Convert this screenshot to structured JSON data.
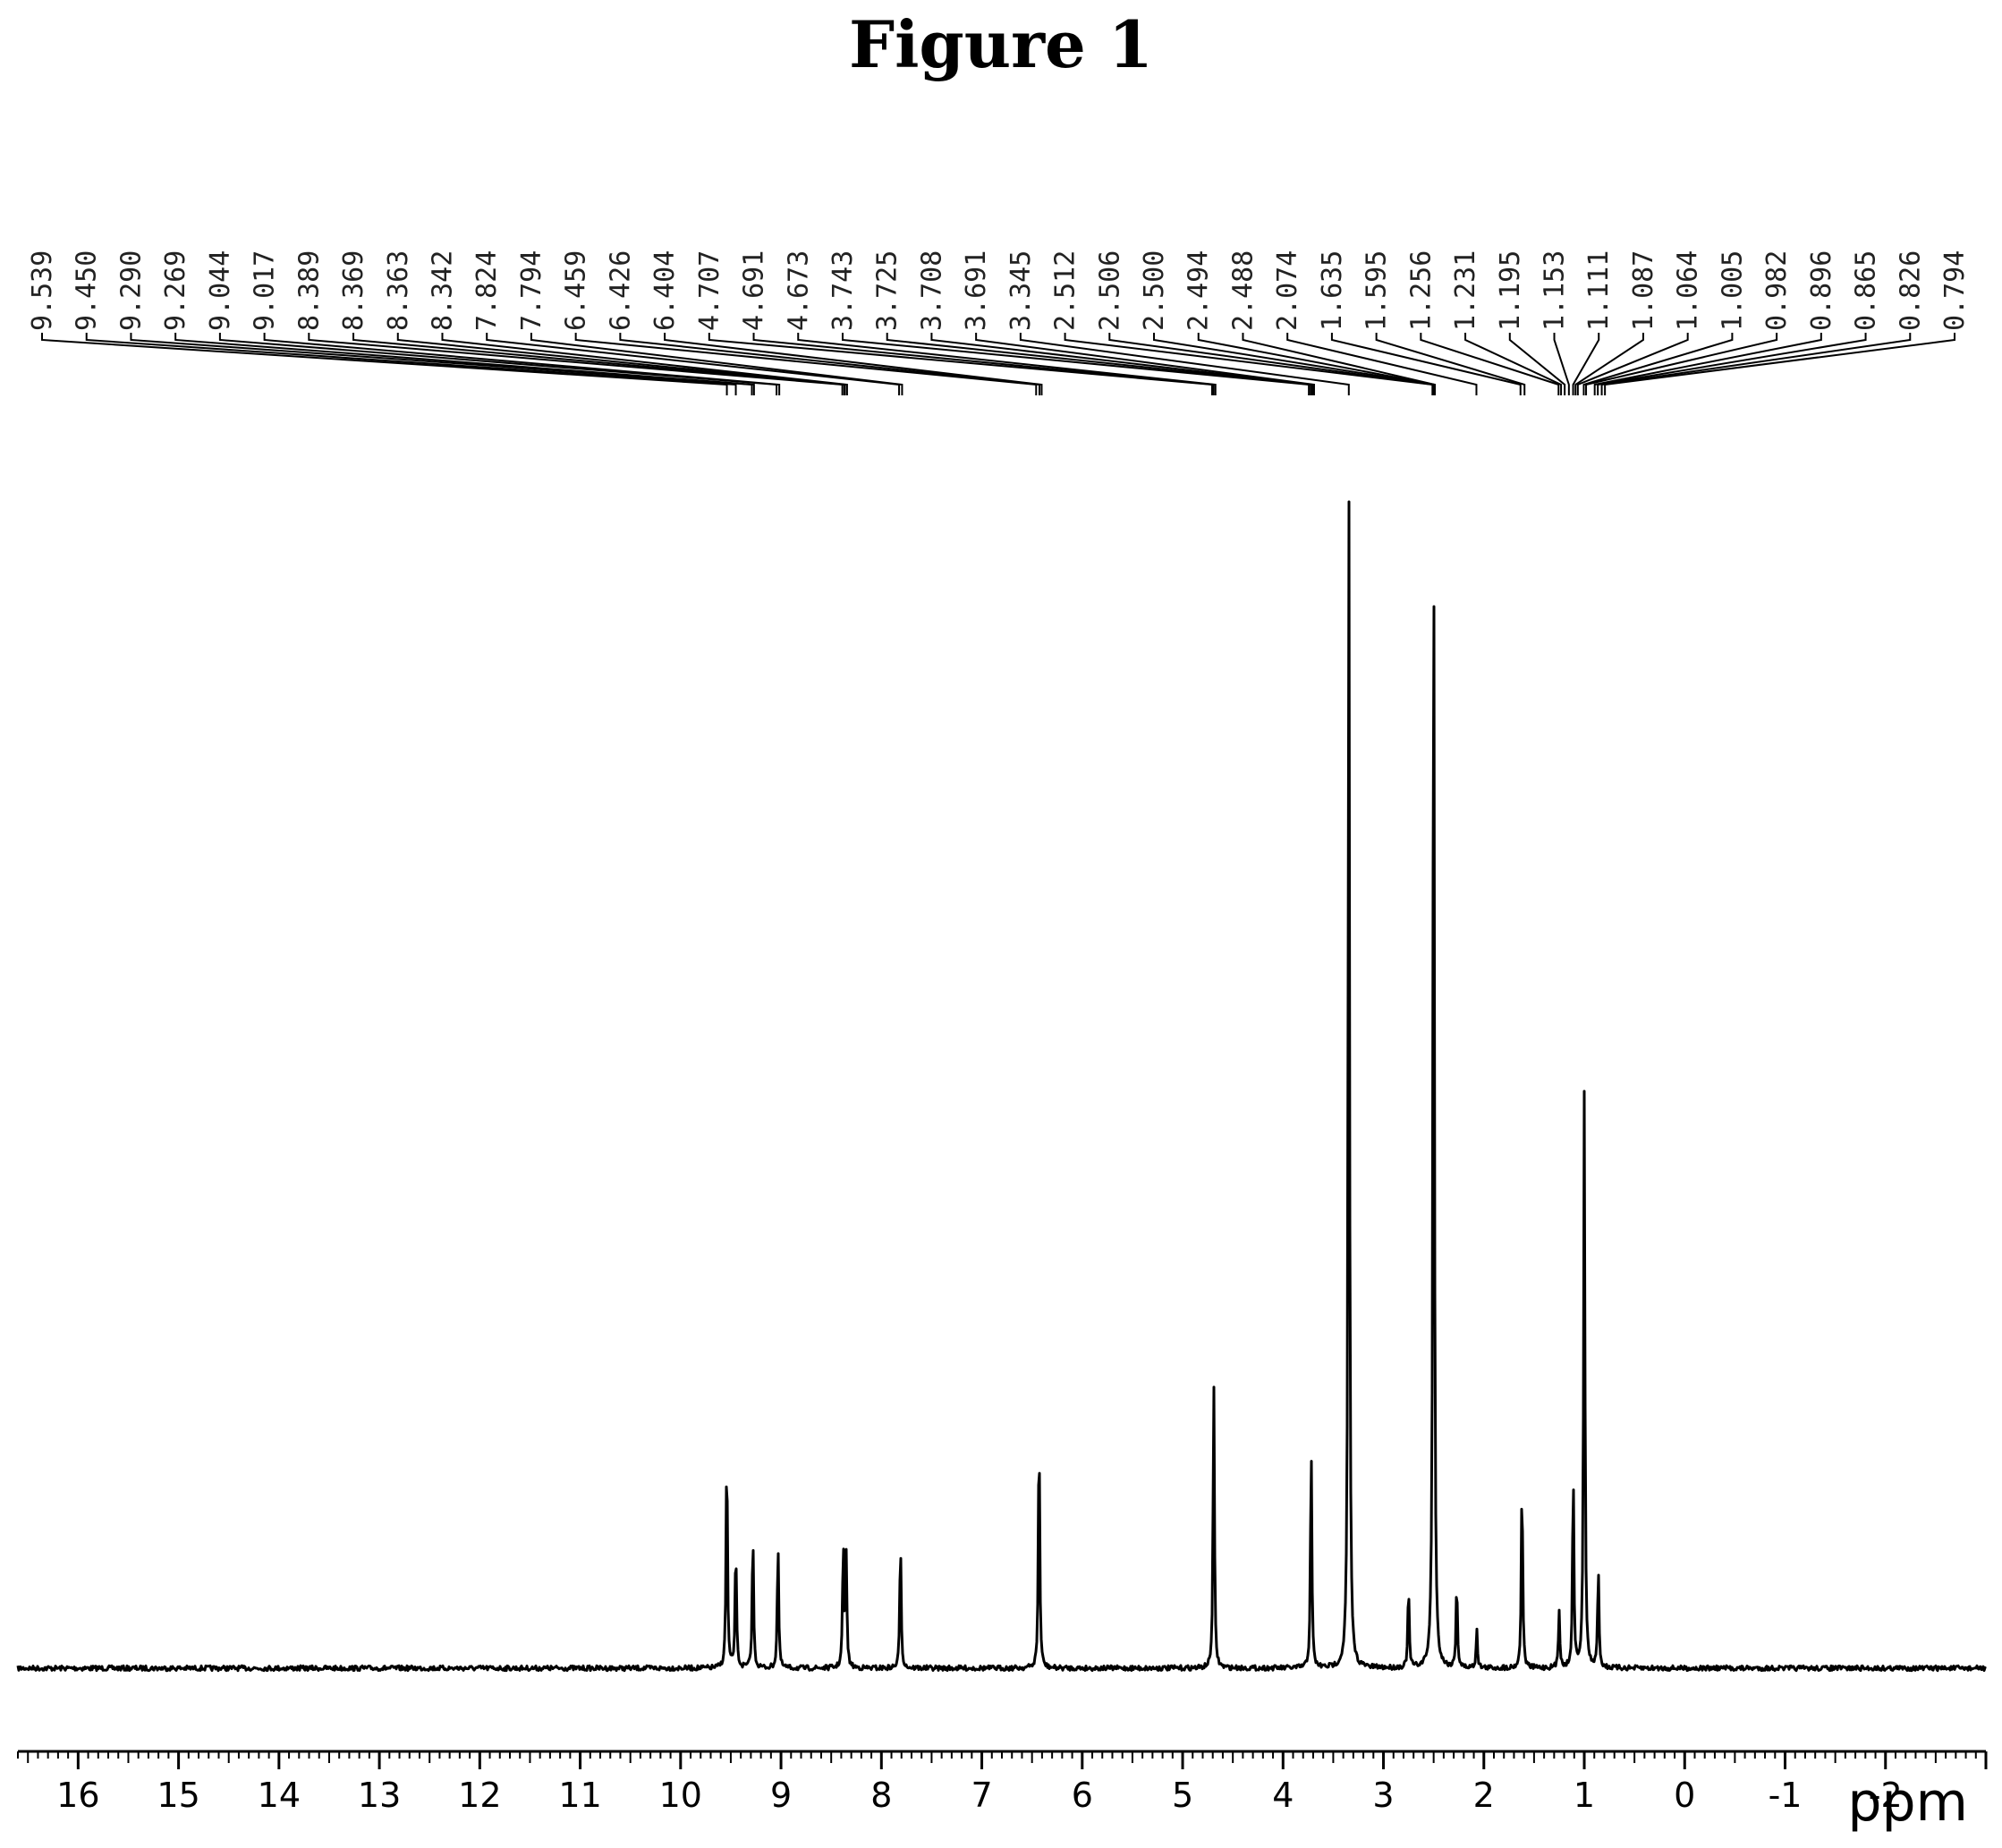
{
  "figure_title": "Figure 1",
  "chart_data": {
    "type": "line",
    "title": "Figure 1",
    "xlabel": "ppm",
    "ylabel": "",
    "x_reversed": true,
    "xlim": [
      16.6,
      -3.0
    ],
    "x_ticks": [
      16,
      15,
      14,
      13,
      12,
      11,
      10,
      9,
      8,
      7,
      6,
      5,
      4,
      3,
      2,
      1,
      0,
      -1,
      -2
    ],
    "grid": false,
    "legend": "none",
    "peak_labels": [
      "9.539",
      "9.450",
      "9.290",
      "9.269",
      "9.044",
      "9.017",
      "8.389",
      "8.369",
      "8.363",
      "8.342",
      "7.824",
      "7.794",
      "6.459",
      "6.426",
      "6.404",
      "4.707",
      "4.691",
      "4.673",
      "3.743",
      "3.725",
      "3.708",
      "3.691",
      "3.345",
      "2.512",
      "2.506",
      "2.500",
      "2.494",
      "2.488",
      "2.074",
      "1.635",
      "1.595",
      "1.256",
      "1.231",
      "1.195",
      "1.153",
      "1.111",
      "1.087",
      "1.064",
      "1.005",
      "0.982",
      "0.896",
      "0.865",
      "0.826",
      "0.794"
    ],
    "peaks": [
      {
        "ppm": 9.54,
        "height": 0.184
      },
      {
        "ppm": 9.45,
        "height": 0.101
      },
      {
        "ppm": 9.28,
        "height": 0.111
      },
      {
        "ppm": 9.03,
        "height": 0.103
      },
      {
        "ppm": 8.38,
        "height": 0.101
      },
      {
        "ppm": 8.35,
        "height": 0.088
      },
      {
        "ppm": 7.81,
        "height": 0.106
      },
      {
        "ppm": 6.43,
        "height": 0.201
      },
      {
        "ppm": 4.69,
        "height": 0.235
      },
      {
        "ppm": 3.72,
        "height": 0.183
      },
      {
        "ppm": 3.345,
        "height": 0.99
      },
      {
        "ppm": 2.75,
        "height": 0.066
      },
      {
        "ppm": 2.5,
        "height": 0.99
      },
      {
        "ppm": 2.27,
        "height": 0.072
      },
      {
        "ppm": 2.07,
        "height": 0.032
      },
      {
        "ppm": 1.62,
        "height": 0.158
      },
      {
        "ppm": 1.25,
        "height": 0.048
      },
      {
        "ppm": 1.11,
        "height": 0.159
      },
      {
        "ppm": 1.0,
        "height": 0.466
      },
      {
        "ppm": 0.86,
        "height": 0.082
      }
    ]
  }
}
